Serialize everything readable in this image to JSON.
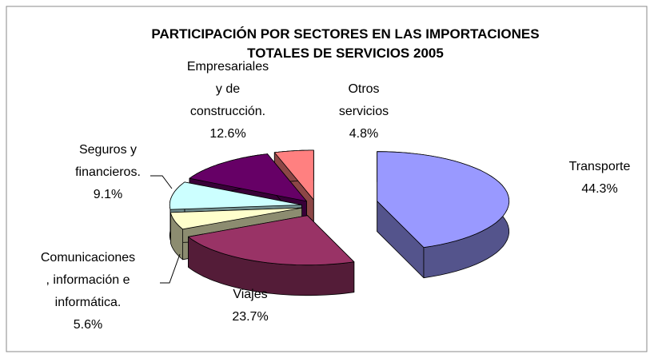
{
  "chart_data": {
    "type": "pie3d",
    "title": "PARTICIPACIÓN POR SECTORES EN LAS IMPORTACIONES\nTOTALES DE SERVICIOS 2005",
    "categories": [
      "Transporte",
      "Viajes",
      "Comunicaciones\n, información e\ninformática.",
      "Seguros y\nfinancieros.",
      "Empresariales\ny de\nconstrucción.",
      "Otros\nservicios"
    ],
    "values": [
      44.3,
      23.7,
      5.6,
      9.1,
      12.6,
      4.8
    ],
    "value_labels": [
      "44.3%",
      "23.7%",
      "5.6%",
      "9.1%",
      "12.6%",
      "4.8%"
    ],
    "colors": [
      "#9999ff",
      "#993366",
      "#ffffcc",
      "#ccffff",
      "#660066",
      "#ff8080"
    ]
  }
}
